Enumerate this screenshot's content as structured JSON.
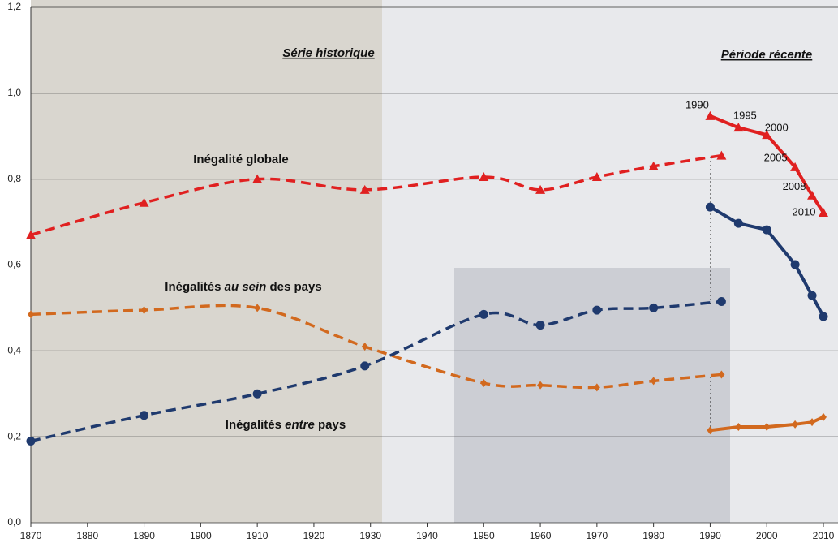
{
  "chart_data": {
    "type": "line",
    "xlim": [
      1870,
      2010
    ],
    "xticks": [
      1870,
      1880,
      1890,
      1900,
      1910,
      1920,
      1930,
      1940,
      1950,
      1960,
      1970,
      1980,
      1990,
      2000,
      2010
    ],
    "ylim": [
      0,
      1.2
    ],
    "yticks": [
      {
        "value": 0,
        "label": "0,0"
      },
      {
        "value": 0.2,
        "label": "0,2"
      },
      {
        "value": 0.4,
        "label": "0,4"
      },
      {
        "value": 0.6,
        "label": "0,6"
      },
      {
        "value": 0.8,
        "label": "0,8"
      },
      {
        "value": 1.0,
        "label": "1,0"
      },
      {
        "value": 1.2,
        "label": "1,2"
      }
    ],
    "grid": true,
    "series": [
      {
        "color": "#e02020",
        "dashed": true,
        "marker": "triangle",
        "x": [
          1870,
          1890,
          1910,
          1929,
          1950,
          1960,
          1970,
          1980,
          1992
        ],
        "values": [
          0.67,
          0.745,
          0.8,
          0.775,
          0.805,
          0.775,
          0.805,
          0.83,
          0.855
        ]
      },
      {
        "color": "#d2691e",
        "dashed": true,
        "marker": "diamond",
        "x": [
          1870,
          1890,
          1910,
          1929,
          1950,
          1960,
          1970,
          1980,
          1992
        ],
        "values": [
          0.485,
          0.495,
          0.5,
          0.41,
          0.325,
          0.32,
          0.315,
          0.33,
          0.345
        ]
      },
      {
        "color": "#1f3a6e",
        "dashed": true,
        "marker": "circle",
        "x": [
          1870,
          1890,
          1910,
          1929,
          1950,
          1960,
          1970,
          1980,
          1992
        ],
        "values": [
          0.19,
          0.25,
          0.3,
          0.365,
          0.485,
          0.46,
          0.495,
          0.5,
          0.515
        ]
      },
      {
        "color": "#e02020",
        "dashed": false,
        "marker": "triangle",
        "x": [
          1990,
          1995,
          2000,
          2005,
          2008,
          2010
        ],
        "values": [
          0.947,
          0.92,
          0.903,
          0.828,
          0.762,
          0.722
        ],
        "point_labels": true
      },
      {
        "color": "#1f3a6e",
        "dashed": false,
        "marker": "circle",
        "x": [
          1990,
          1995,
          2000,
          2005,
          2008,
          2010
        ],
        "values": [
          0.735,
          0.697,
          0.682,
          0.601,
          0.529,
          0.48
        ]
      },
      {
        "color": "#d2691e",
        "dashed": false,
        "marker": "diamond",
        "x": [
          1990,
          1995,
          2000,
          2005,
          2008,
          2010
        ],
        "values": [
          0.215,
          0.223,
          0.223,
          0.229,
          0.234,
          0.246
        ]
      }
    ],
    "headers": [
      "Série historique",
      "Période récente"
    ],
    "annotations": [
      {
        "parts": [
          "Inégalité globale"
        ],
        "italic_part": null
      },
      {
        "parts": [
          "Inégalités ",
          "au sein",
          " des pays"
        ],
        "italic_part": 1
      },
      {
        "parts": [
          "Inégalités ",
          "entre",
          " pays"
        ],
        "italic_part": 1
      }
    ]
  }
}
